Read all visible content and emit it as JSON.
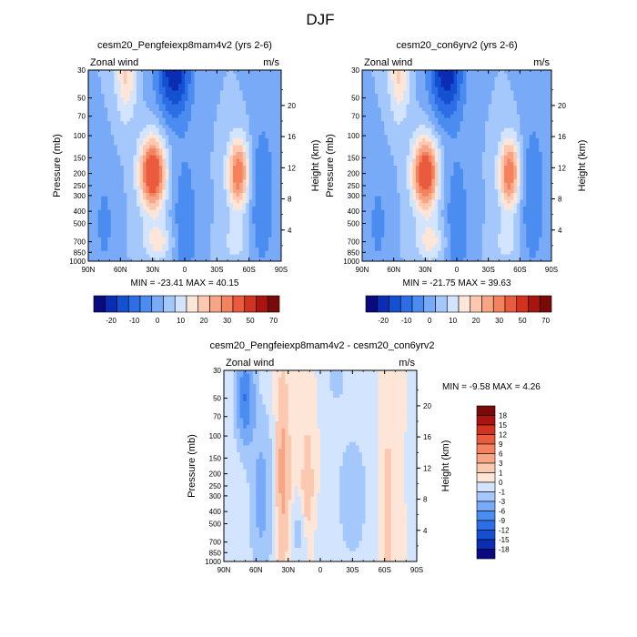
{
  "page_title": "DJF",
  "colors": {
    "panel_scale": [
      "#0a0a80",
      "#0a2db4",
      "#1450d2",
      "#2d6ee6",
      "#4b8cf0",
      "#78aaf8",
      "#a5c8fc",
      "#d2e4fe",
      "#fde6d8",
      "#fcc8b0",
      "#f8a585",
      "#f4825f",
      "#ea5a3c",
      "#d2321e",
      "#aa140f",
      "#780a0a"
    ],
    "diff_scale": [
      "#0a0a80",
      "#0a2db4",
      "#1450d2",
      "#2d6ee6",
      "#4b8cf0",
      "#78aaf8",
      "#a5c8fc",
      "#d2e4fe",
      "#fde6d8",
      "#fcc8b0",
      "#f8a585",
      "#f4825f",
      "#ea5a3c",
      "#d2321e",
      "#aa140f",
      "#780a0a"
    ]
  },
  "chart_data": [
    {
      "type": "heatmap",
      "title": "cesm20_Pengfeiexp8mam4v2 (yrs 2-6)",
      "left_label": "Zonal wind",
      "right_label": "m/s",
      "ylabel": "Pressure (mb)",
      "ylabel_right": "Height (km)",
      "x_ticks": [
        "90N",
        "60N",
        "30N",
        "0",
        "30S",
        "60S",
        "90S"
      ],
      "y_ticks": [
        "30",
        "50",
        "70",
        "100",
        "150",
        "200",
        "250",
        "300",
        "400",
        "500",
        "700",
        "850",
        "1000"
      ],
      "y_ticks_right": [
        "20",
        "16",
        "12",
        "8",
        "4"
      ],
      "min_max_text": "MIN = -23.41   MAX =  40.15",
      "colorbar_labels": [
        "-20",
        "-10",
        "0",
        "10",
        "20",
        "30",
        "50",
        "70"
      ],
      "jets": [
        {
          "lat": 30,
          "pressure": 200,
          "value": 40.15
        },
        {
          "lat": -50,
          "pressure": 200,
          "value": 30
        },
        {
          "lat": 10,
          "pressure": 30,
          "value": -23.41
        }
      ]
    },
    {
      "type": "heatmap",
      "title": "cesm20_con6yrv2 (yrs 2-6)",
      "left_label": "Zonal wind",
      "right_label": "m/s",
      "ylabel": "Pressure (mb)",
      "ylabel_right": "Height (km)",
      "x_ticks": [
        "90N",
        "60N",
        "30N",
        "0",
        "30S",
        "60S",
        "90S"
      ],
      "y_ticks": [
        "30",
        "50",
        "70",
        "100",
        "150",
        "200",
        "250",
        "300",
        "400",
        "500",
        "700",
        "850",
        "1000"
      ],
      "y_ticks_right": [
        "20",
        "16",
        "12",
        "8",
        "4"
      ],
      "min_max_text": "MIN = -21.75   MAX =  39.63",
      "colorbar_labels": [
        "-20",
        "-10",
        "0",
        "10",
        "20",
        "30",
        "50",
        "70"
      ],
      "jets": [
        {
          "lat": 30,
          "pressure": 200,
          "value": 39.63
        },
        {
          "lat": -50,
          "pressure": 200,
          "value": 30
        },
        {
          "lat": 10,
          "pressure": 30,
          "value": -21.75
        }
      ]
    },
    {
      "type": "heatmap",
      "title": "cesm20_Pengfeiexp8mam4v2 - cesm20_con6yrv2",
      "left_label": "Zonal wind",
      "right_label": "m/s",
      "ylabel": "Pressure (mb)",
      "ylabel_right": "Height (km)",
      "x_ticks": [
        "90N",
        "60N",
        "30N",
        "0",
        "30S",
        "60S",
        "90S"
      ],
      "y_ticks": [
        "30",
        "50",
        "70",
        "100",
        "150",
        "200",
        "250",
        "300",
        "400",
        "500",
        "700",
        "850",
        "1000"
      ],
      "y_ticks_right": [
        "20",
        "16",
        "12",
        "8",
        "4"
      ],
      "min_max_text": "MIN =  -9.58   MAX =    4.26",
      "colorbar_labels": [
        "18",
        "15",
        "12",
        "9",
        "6",
        "3",
        "1",
        "0",
        "-1",
        "-3",
        "-6",
        "-9",
        "-12",
        "-15",
        "-18"
      ],
      "extrema": {
        "min": -9.58,
        "max": 4.26
      }
    }
  ]
}
